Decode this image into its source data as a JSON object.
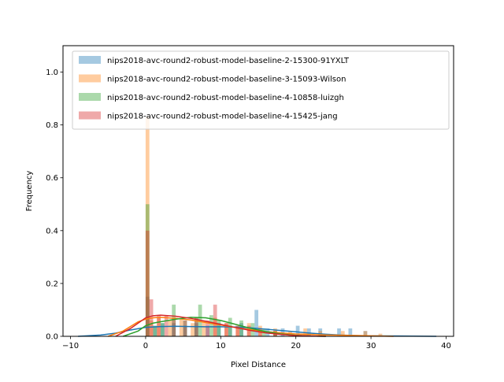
{
  "chart_data": {
    "type": "histogram",
    "title": "",
    "xlabel": "Pixel Distance",
    "ylabel": "Frequency",
    "xlim": [
      -11,
      41
    ],
    "ylim": [
      0,
      1.1
    ],
    "xticks": [
      -10,
      0,
      10,
      20,
      30,
      40
    ],
    "yticks": [
      0.0,
      0.2,
      0.4,
      0.6,
      0.8,
      1.0
    ],
    "xtick_labels": [
      "−10",
      "0",
      "10",
      "20",
      "30",
      "40"
    ],
    "ytick_labels": [
      "0.0",
      "0.2",
      "0.4",
      "0.6",
      "0.8",
      "1.0"
    ],
    "grid": false,
    "legend_position": "top",
    "bin_width": 0.5,
    "series": [
      {
        "name": "nips2018-avc-round2-robust-model-baseline-2-15300-91YXLT",
        "color": "#1f77b4",
        "bins": [
          [
            0.0,
            0.15
          ],
          [
            1.0,
            0.04
          ],
          [
            2.0,
            0.05
          ],
          [
            3.5,
            0.05
          ],
          [
            5.0,
            0.04
          ],
          [
            6.5,
            0.05
          ],
          [
            8.0,
            0.04
          ],
          [
            9.5,
            0.05
          ],
          [
            11.0,
            0.04
          ],
          [
            12.5,
            0.05
          ],
          [
            14.5,
            0.1
          ],
          [
            16.0,
            0.03
          ],
          [
            18.0,
            0.03
          ],
          [
            20.0,
            0.04
          ],
          [
            21.5,
            0.03
          ],
          [
            23.0,
            0.03
          ],
          [
            25.5,
            0.03
          ],
          [
            27.0,
            0.03
          ],
          [
            29.0,
            0.02
          ]
        ],
        "kde": [
          [
            -9.0,
            0.0
          ],
          [
            -6.0,
            0.005
          ],
          [
            -4.0,
            0.012
          ],
          [
            -2.0,
            0.024
          ],
          [
            0.0,
            0.034
          ],
          [
            2.0,
            0.037
          ],
          [
            4.0,
            0.038
          ],
          [
            6.0,
            0.037
          ],
          [
            8.0,
            0.036
          ],
          [
            10.0,
            0.036
          ],
          [
            12.0,
            0.035
          ],
          [
            14.0,
            0.032
          ],
          [
            16.0,
            0.027
          ],
          [
            18.0,
            0.022
          ],
          [
            20.0,
            0.017
          ],
          [
            22.0,
            0.012
          ],
          [
            24.0,
            0.008
          ],
          [
            26.0,
            0.005
          ],
          [
            28.0,
            0.003
          ],
          [
            30.0,
            0.002
          ],
          [
            34.0,
            0.001
          ],
          [
            38.7,
            0.0
          ]
        ]
      },
      {
        "name": "nips2018-avc-round2-robust-model-baseline-3-15093-Wilson",
        "color": "#ff7f0e",
        "bins": [
          [
            0.0,
            0.83
          ],
          [
            0.5,
            0.06
          ],
          [
            1.5,
            0.07
          ],
          [
            3.0,
            0.06
          ],
          [
            4.5,
            0.07
          ],
          [
            6.0,
            0.05
          ],
          [
            7.5,
            0.06
          ],
          [
            9.0,
            0.07
          ],
          [
            10.5,
            0.05
          ],
          [
            12.0,
            0.04
          ],
          [
            13.5,
            0.05
          ],
          [
            15.0,
            0.04
          ],
          [
            17.0,
            0.03
          ],
          [
            19.0,
            0.02
          ],
          [
            21.0,
            0.03
          ],
          [
            23.0,
            0.02
          ],
          [
            26.0,
            0.02
          ],
          [
            29.0,
            0.02
          ],
          [
            31.0,
            0.01
          ]
        ],
        "kde": [
          [
            -5.0,
            0.0
          ],
          [
            -3.0,
            0.02
          ],
          [
            -1.0,
            0.055
          ],
          [
            0.0,
            0.065
          ],
          [
            1.0,
            0.07
          ],
          [
            2.0,
            0.072
          ],
          [
            4.0,
            0.068
          ],
          [
            6.0,
            0.062
          ],
          [
            8.0,
            0.052
          ],
          [
            10.0,
            0.043
          ],
          [
            12.0,
            0.033
          ],
          [
            14.0,
            0.025
          ],
          [
            16.0,
            0.018
          ],
          [
            18.0,
            0.013
          ],
          [
            20.0,
            0.009
          ],
          [
            22.0,
            0.007
          ],
          [
            24.0,
            0.005
          ],
          [
            26.0,
            0.004
          ],
          [
            28.0,
            0.003
          ],
          [
            30.0,
            0.002
          ],
          [
            33.0,
            0.0
          ]
        ]
      },
      {
        "name": "nips2018-avc-round2-robust-model-baseline-4-10858-luizgh",
        "color": "#2ca02c",
        "bins": [
          [
            0.0,
            0.5
          ],
          [
            1.0,
            0.04
          ],
          [
            2.0,
            0.05
          ],
          [
            3.5,
            0.12
          ],
          [
            5.0,
            0.06
          ],
          [
            6.5,
            0.07
          ],
          [
            7.0,
            0.12
          ],
          [
            8.5,
            0.08
          ],
          [
            9.5,
            0.06
          ],
          [
            11.0,
            0.07
          ],
          [
            12.5,
            0.06
          ],
          [
            14.0,
            0.05
          ],
          [
            15.5,
            0.03
          ],
          [
            17.0,
            0.02
          ]
        ],
        "kde": [
          [
            -3.0,
            0.0
          ],
          [
            -1.0,
            0.02
          ],
          [
            0.0,
            0.04
          ],
          [
            1.0,
            0.05
          ],
          [
            2.0,
            0.055
          ],
          [
            4.0,
            0.065
          ],
          [
            6.0,
            0.072
          ],
          [
            8.0,
            0.07
          ],
          [
            10.0,
            0.06
          ],
          [
            12.0,
            0.045
          ],
          [
            14.0,
            0.03
          ],
          [
            16.0,
            0.018
          ],
          [
            18.0,
            0.009
          ],
          [
            20.0,
            0.004
          ],
          [
            22.0,
            0.001
          ],
          [
            24.0,
            0.0
          ]
        ]
      },
      {
        "name": "nips2018-avc-round2-robust-model-baseline-4-15425-jang",
        "color": "#d62728",
        "bins": [
          [
            0.0,
            0.4
          ],
          [
            0.5,
            0.14
          ],
          [
            1.5,
            0.08
          ],
          [
            2.5,
            0.08
          ],
          [
            3.5,
            0.07
          ],
          [
            5.0,
            0.06
          ],
          [
            6.5,
            0.07
          ],
          [
            8.0,
            0.06
          ],
          [
            9.0,
            0.12
          ],
          [
            10.5,
            0.05
          ],
          [
            12.0,
            0.04
          ],
          [
            13.5,
            0.04
          ],
          [
            15.0,
            0.03
          ],
          [
            17.0,
            0.02
          ]
        ],
        "kde": [
          [
            -4.0,
            0.0
          ],
          [
            -2.0,
            0.03
          ],
          [
            0.0,
            0.07
          ],
          [
            1.0,
            0.078
          ],
          [
            2.0,
            0.08
          ],
          [
            4.0,
            0.076
          ],
          [
            6.0,
            0.068
          ],
          [
            8.0,
            0.057
          ],
          [
            10.0,
            0.045
          ],
          [
            12.0,
            0.033
          ],
          [
            14.0,
            0.022
          ],
          [
            16.0,
            0.013
          ],
          [
            18.0,
            0.007
          ],
          [
            20.0,
            0.003
          ],
          [
            22.0,
            0.001
          ],
          [
            24.0,
            0.0
          ]
        ]
      }
    ]
  }
}
